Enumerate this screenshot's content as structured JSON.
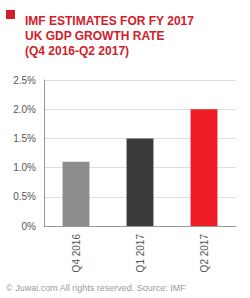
{
  "chart_data": {
    "type": "bar",
    "title": "IMF ESTIMATES FOR FY 2017\nUK GDP GROWTH RATE\n(Q4 2016-Q2 2017)",
    "annotations": [
      "© Juwai.com All rights reserved. Source: IMF"
    ],
    "categories": [
      "Q4 2016",
      "Q1 2017",
      "Q2 2017"
    ],
    "values": [
      1.1,
      1.5,
      2.0
    ],
    "colors": [
      "#8c8c8c",
      "#3a3a3a",
      "#ee1c25"
    ],
    "ylim": [
      0,
      2.5
    ],
    "yticks": [
      {
        "value": 0,
        "label": "0%"
      },
      {
        "value": 0.5,
        "label": "0.5%"
      },
      {
        "value": 1,
        "label": "1.0%"
      },
      {
        "value": 1.5,
        "label": "1.5%"
      },
      {
        "value": 2,
        "label": "2.0%"
      },
      {
        "value": 2.5,
        "label": "2.5%"
      }
    ],
    "grid": true
  }
}
